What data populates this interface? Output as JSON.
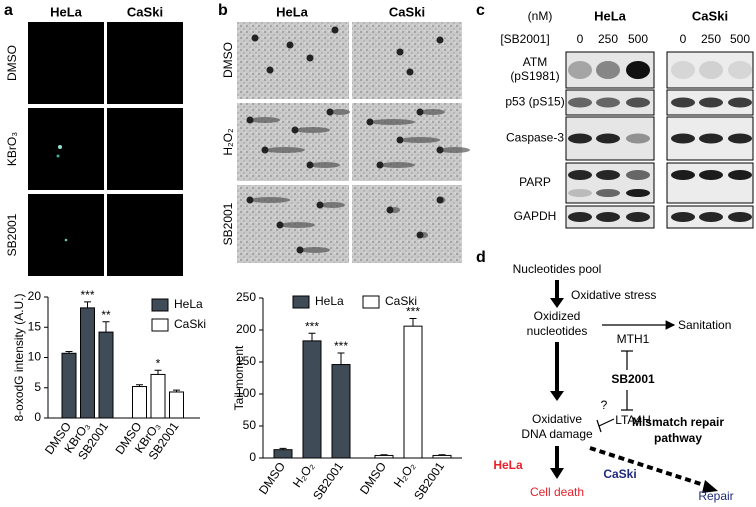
{
  "panel_labels": [
    "a",
    "b",
    "c",
    "d"
  ],
  "panel_a_images": {
    "columns": [
      "HeLa",
      "CaSki"
    ],
    "rows": [
      "DMSO",
      "KBrO₃",
      "SB2001"
    ]
  },
  "panel_b_images": {
    "columns": [
      "HeLa",
      "CaSki"
    ],
    "rows": [
      "DMSO",
      "H₂O₂",
      "SB2001"
    ]
  },
  "chart_data": [
    {
      "type": "bar",
      "ylabel": "8-oxodG intensity (A.U.)",
      "categories": [
        "DMSO",
        "KBrO₃",
        "SB2001",
        "DMSO",
        "KBrO₃",
        "SB2001"
      ],
      "series": [
        {
          "name": "HeLa",
          "color": "#3f4b57",
          "values": [
            10.7,
            18.2,
            14.2,
            null,
            null,
            null
          ],
          "errors": [
            0.3,
            1.0,
            1.7,
            null,
            null,
            null
          ],
          "annotations": [
            null,
            "***",
            "**",
            null,
            null,
            null
          ]
        },
        {
          "name": "CaSki",
          "color": "#ffffff",
          "values": [
            null,
            null,
            null,
            5.2,
            7.2,
            4.3
          ],
          "errors": [
            null,
            null,
            null,
            0.3,
            0.7,
            0.3
          ],
          "annotations": [
            null,
            null,
            null,
            null,
            "*",
            null
          ]
        }
      ],
      "ylim": [
        0,
        20
      ],
      "yticks": [
        0,
        5,
        10,
        15,
        20
      ],
      "legend": "right"
    },
    {
      "type": "bar",
      "ylabel": "Tail moment",
      "categories": [
        "DMSO",
        "H₂O₂",
        "SB2001",
        "DMSO",
        "H₂O₂",
        "SB2001"
      ],
      "series": [
        {
          "name": "HeLa",
          "color": "#3f4b57",
          "values": [
            13,
            183,
            146,
            null,
            null,
            null
          ],
          "errors": [
            2,
            12,
            18,
            null,
            null,
            null
          ],
          "annotations": [
            null,
            "***",
            "***",
            null,
            null,
            null
          ]
        },
        {
          "name": "CaSki",
          "color": "#ffffff",
          "values": [
            null,
            null,
            null,
            4,
            206,
            4
          ],
          "errors": [
            null,
            null,
            null,
            1,
            12,
            1
          ],
          "annotations": [
            null,
            null,
            null,
            null,
            "***",
            null
          ]
        }
      ],
      "ylim": [
        0,
        250
      ],
      "yticks": [
        0,
        50,
        100,
        150,
        200,
        250
      ],
      "legend": "top"
    }
  ],
  "blot": {
    "unit": "(nM)",
    "treatment": "[SB2001]",
    "cell_lines": [
      "HeLa",
      "CaSki"
    ],
    "doses": [
      "0",
      "250",
      "500",
      "0",
      "250",
      "500"
    ],
    "rows": [
      [
        "ATM",
        "(pS1981)"
      ],
      [
        "p53 (pS15)"
      ],
      [
        "Caspase-3"
      ],
      [
        "PARP"
      ],
      [
        "GAPDH"
      ]
    ]
  },
  "diagram": {
    "pool": "Nucleotides pool",
    "stress": "Oxidative stress",
    "oxidized": [
      "Oxidized",
      "nucleotides"
    ],
    "sanitation": "Sanitation",
    "mth1": "MTH1",
    "drug": "SB2001",
    "lta4h": "LTA4H",
    "question": "?",
    "damage": [
      "Oxidative",
      "DNA damage"
    ],
    "mismatch": [
      "Mismatch repair",
      "pathway"
    ],
    "hela": "HeLa",
    "caski": "CaSki",
    "death": "Cell death",
    "repair": "Repair"
  }
}
